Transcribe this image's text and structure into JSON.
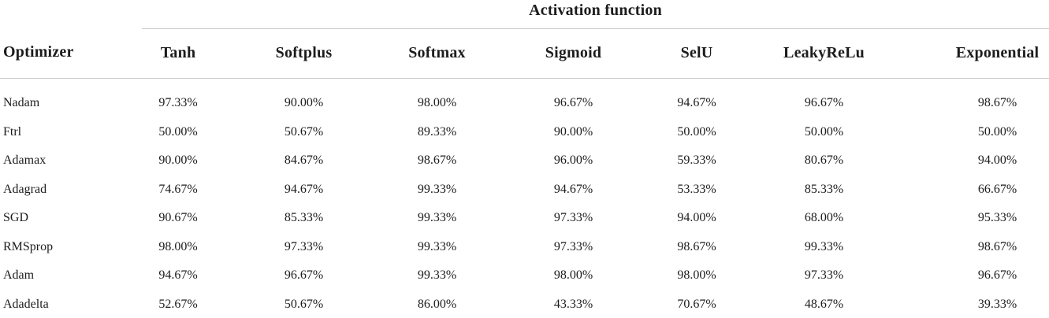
{
  "table": {
    "span_header": "Activation function",
    "columns": [
      "Optimizer",
      "Tanh",
      "Softplus",
      "Softmax",
      "Sigmoid",
      "SelU",
      "LeakyReLu",
      "Exponential"
    ],
    "rows": [
      {
        "optimizer": "Nadam",
        "values": [
          "97.33%",
          "90.00%",
          "98.00%",
          "96.67%",
          "94.67%",
          "96.67%",
          "98.67%"
        ]
      },
      {
        "optimizer": "Ftrl",
        "values": [
          "50.00%",
          "50.67%",
          "89.33%",
          "90.00%",
          "50.00%",
          "50.00%",
          "50.00%"
        ]
      },
      {
        "optimizer": "Adamax",
        "values": [
          "90.00%",
          "84.67%",
          "98.67%",
          "96.00%",
          "59.33%",
          "80.67%",
          "94.00%"
        ]
      },
      {
        "optimizer": "Adagrad",
        "values": [
          "74.67%",
          "94.67%",
          "99.33%",
          "94.67%",
          "53.33%",
          "85.33%",
          "66.67%"
        ]
      },
      {
        "optimizer": "SGD",
        "values": [
          "90.67%",
          "85.33%",
          "99.33%",
          "97.33%",
          "94.00%",
          "68.00%",
          "95.33%"
        ]
      },
      {
        "optimizer": "RMSprop",
        "values": [
          "98.00%",
          "97.33%",
          "99.33%",
          "97.33%",
          "98.67%",
          "99.33%",
          "98.67%"
        ]
      },
      {
        "optimizer": "Adam",
        "values": [
          "94.67%",
          "96.67%",
          "99.33%",
          "98.00%",
          "98.00%",
          "97.33%",
          "96.67%"
        ]
      },
      {
        "optimizer": "Adadelta",
        "values": [
          "52.67%",
          "50.67%",
          "86.00%",
          "43.33%",
          "70.67%",
          "48.67%",
          "39.33%"
        ]
      }
    ],
    "colors": {
      "text": "#1c1c1c",
      "rule_light": "#c9c9c9",
      "rule_bottom_top": "#c2c2c2",
      "rule_bottom_bottom": "#d4d4d4"
    }
  }
}
